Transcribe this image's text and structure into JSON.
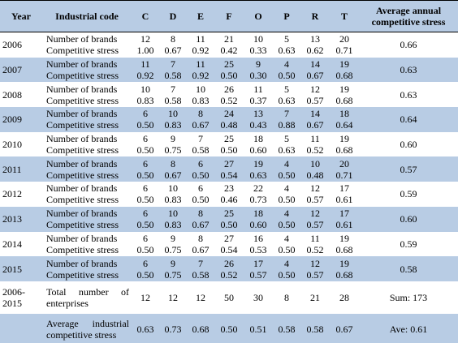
{
  "header": [
    "Year",
    "Industrial code",
    "C",
    "D",
    "E",
    "F",
    "O",
    "P",
    "R",
    "T",
    "Average annual competitive stress"
  ],
  "years": [
    {
      "year": "2006",
      "brands_label": "Number of brands",
      "stress_label": "Competitive stress",
      "brands": [
        "12",
        "8",
        "11",
        "21",
        "10",
        "5",
        "13",
        "20"
      ],
      "stress": [
        "1.00",
        "0.67",
        "0.92",
        "0.42",
        "0.33",
        "0.63",
        "0.62",
        "0.71"
      ],
      "average": "0.66"
    },
    {
      "year": "2007",
      "brands_label": "Number of brands",
      "stress_label": "Competitive stress",
      "brands": [
        "11",
        "7",
        "11",
        "25",
        "9",
        "4",
        "14",
        "19"
      ],
      "stress": [
        "0.92",
        "0.58",
        "0.92",
        "0.50",
        "0.30",
        "0.50",
        "0.67",
        "0.68"
      ],
      "average": "0.63"
    },
    {
      "year": "2008",
      "brands_label": "Number of brands",
      "stress_label": "Competitive stress",
      "brands": [
        "10",
        "7",
        "10",
        "26",
        "11",
        "5",
        "12",
        "19"
      ],
      "stress": [
        "0.83",
        "0.58",
        "0.83",
        "0.52",
        "0.37",
        "0.63",
        "0.57",
        "0.68"
      ],
      "average": "0.63"
    },
    {
      "year": "2009",
      "brands_label": "Number of brands",
      "stress_label": "Competitive stress",
      "brands": [
        "6",
        "10",
        "8",
        "24",
        "13",
        "7",
        "14",
        "18"
      ],
      "stress": [
        "0.50",
        "0.83",
        "0.67",
        "0.48",
        "0.43",
        "0.88",
        "0.67",
        "0.64"
      ],
      "average": "0.64"
    },
    {
      "year": "2010",
      "brands_label": "Number of brands",
      "stress_label": "Competitive stress",
      "brands": [
        "6",
        "9",
        "7",
        "25",
        "18",
        "5",
        "11",
        "19"
      ],
      "stress": [
        "0.50",
        "0.75",
        "0.58",
        "0.50",
        "0.60",
        "0.63",
        "0.52",
        "0.68"
      ],
      "average": "0.60"
    },
    {
      "year": "2011",
      "brands_label": "Number of brands",
      "stress_label": "Competitive stress",
      "brands": [
        "6",
        "8",
        "6",
        "27",
        "19",
        "4",
        "10",
        "20"
      ],
      "stress": [
        "0.50",
        "0.67",
        "0.50",
        "0.54",
        "0.63",
        "0.50",
        "0.48",
        "0.71"
      ],
      "average": "0.57"
    },
    {
      "year": "2012",
      "brands_label": "Number of brands",
      "stress_label": "Competitive stress",
      "brands": [
        "6",
        "10",
        "6",
        "23",
        "22",
        "4",
        "12",
        "17"
      ],
      "stress": [
        "0.50",
        "0.83",
        "0.50",
        "0.46",
        "0.73",
        "0.50",
        "0.57",
        "0.61"
      ],
      "average": "0.59"
    },
    {
      "year": "2013",
      "brands_label": "Number of brands",
      "stress_label": "Competitive stress",
      "brands": [
        "6",
        "10",
        "8",
        "25",
        "18",
        "4",
        "12",
        "17"
      ],
      "stress": [
        "0.50",
        "0.83",
        "0.67",
        "0.50",
        "0.60",
        "0.50",
        "0.57",
        "0.61"
      ],
      "average": "0.60"
    },
    {
      "year": "2014",
      "brands_label": "Number of brands",
      "stress_label": "Competitive stress",
      "brands": [
        "6",
        "9",
        "8",
        "27",
        "16",
        "4",
        "11",
        "19"
      ],
      "stress": [
        "0.50",
        "0.75",
        "0.67",
        "0.54",
        "0.53",
        "0.50",
        "0.52",
        "0.68"
      ],
      "average": "0.59"
    },
    {
      "year": "2015",
      "brands_label": "Number of brands",
      "stress_label": "Competitive stress",
      "brands": [
        "6",
        "9",
        "7",
        "26",
        "17",
        "4",
        "12",
        "19"
      ],
      "stress": [
        "0.50",
        "0.75",
        "0.58",
        "0.52",
        "0.57",
        "0.50",
        "0.57",
        "0.68"
      ],
      "average": "0.58"
    }
  ],
  "total": {
    "year": "2006-2015",
    "label": "Total number of enterprises",
    "values": [
      "12",
      "12",
      "12",
      "50",
      "30",
      "8",
      "21",
      "28"
    ],
    "sum": "Sum: 173"
  },
  "average_row": {
    "label": "Average industrial competitive stress",
    "values": [
      "0.63",
      "0.73",
      "0.68",
      "0.50",
      "0.51",
      "0.58",
      "0.58",
      "0.67"
    ],
    "ave": "Ave: 0.61"
  }
}
